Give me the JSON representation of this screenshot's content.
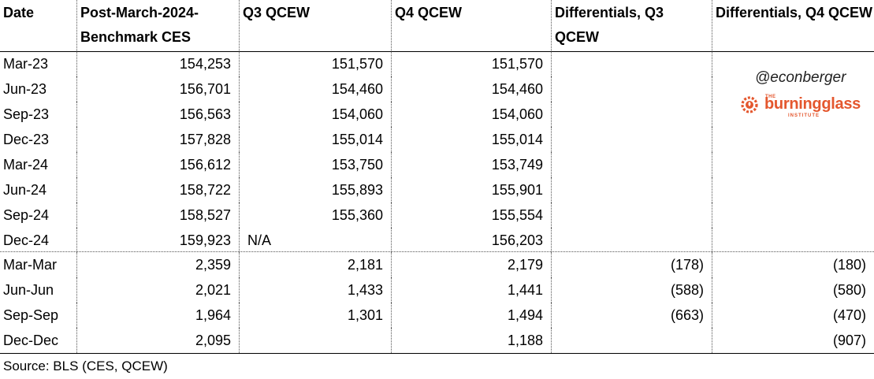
{
  "header": [
    "Date",
    "Post-March-2024-Benchmark CES",
    "Q3 QCEW",
    "Q4 QCEW",
    "Differentials, Q3 QCEW",
    "Differentials, Q4 QCEW"
  ],
  "levels": [
    [
      "Mar-23",
      "154,253",
      "151,570",
      "151,570",
      "",
      ""
    ],
    [
      "Jun-23",
      "156,701",
      "154,460",
      "154,460",
      "",
      ""
    ],
    [
      "Sep-23",
      "156,563",
      "154,060",
      "154,060",
      "",
      ""
    ],
    [
      "Dec-23",
      "157,828",
      "155,014",
      "155,014",
      "",
      ""
    ],
    [
      "Mar-24",
      "156,612",
      "153,750",
      "153,749",
      "",
      ""
    ],
    [
      "Jun-24",
      "158,722",
      "155,893",
      "155,901",
      "",
      ""
    ],
    [
      "Sep-24",
      "158,527",
      "155,360",
      "155,554",
      "",
      ""
    ],
    [
      "Dec-24",
      "159,923",
      "N/A",
      "156,203",
      "",
      ""
    ]
  ],
  "changes": [
    [
      "Mar-Mar",
      "2,359",
      "2,181",
      "2,179",
      "(178)",
      "(180)"
    ],
    [
      "Jun-Jun",
      "2,021",
      "1,433",
      "1,441",
      "(588)",
      "(580)"
    ],
    [
      "Sep-Sep",
      "1,964",
      "1,301",
      "1,494",
      "(663)",
      "(470)"
    ],
    [
      "Dec-Dec",
      "2,095",
      "",
      "1,188",
      "",
      "(907)"
    ]
  ],
  "watermark": {
    "handle": "@econberger",
    "logo_brand": "burningglass",
    "logo_the": "THE",
    "logo_institute": "INSTITUTE",
    "logo_color": "#e4572e",
    "logo_icon": "flame-gear-icon"
  },
  "source": "Source: BLS (CES, QCEW)"
}
